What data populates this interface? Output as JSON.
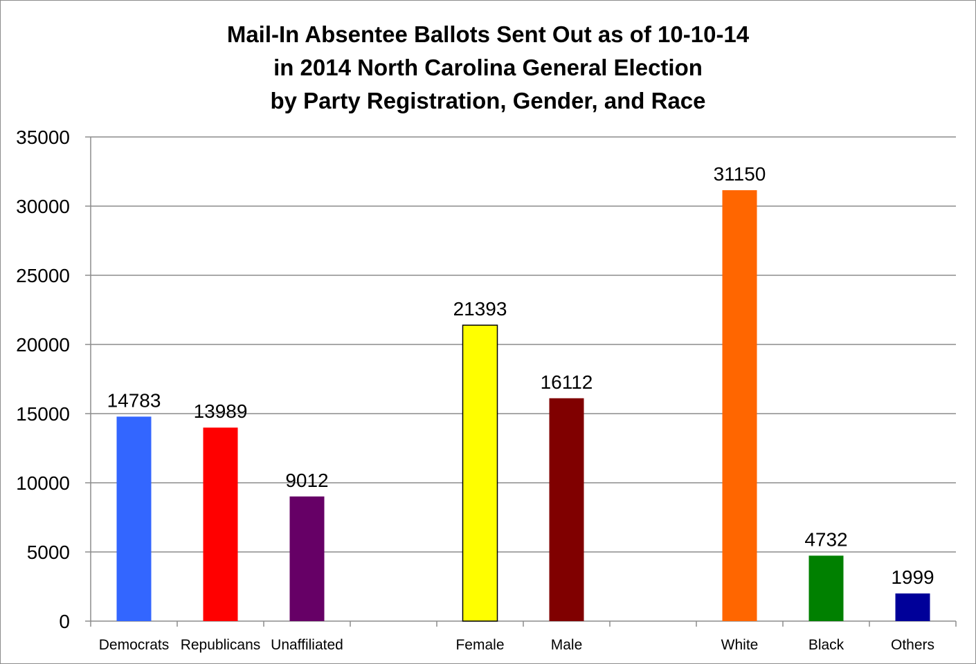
{
  "chart_data": {
    "type": "bar",
    "title": [
      "Mail-In Absentee Ballots Sent Out as of 10-10-14",
      "in 2014 North Carolina General Election",
      "by Party Registration, Gender, and Race"
    ],
    "xlabel": "",
    "ylabel": "",
    "ylim": [
      0,
      35000
    ],
    "yticks": [
      "0",
      "5000",
      "10000",
      "15000",
      "20000",
      "25000",
      "30000",
      "35000"
    ],
    "grid": true,
    "legend": "none",
    "categories": [
      "Democrats",
      "Republicans",
      "Unaffiliated",
      "",
      "Female",
      "Male",
      "",
      "White",
      "Black",
      "Others"
    ],
    "values": [
      14783,
      13989,
      9012,
      null,
      21393,
      16112,
      null,
      31150,
      4732,
      1999
    ],
    "data_labels": [
      "14783",
      "13989",
      "9012",
      "",
      "21393",
      "16112",
      "",
      "31150",
      "4732",
      "1999"
    ],
    "colors": [
      "#3366ff",
      "#ff0000",
      "#660066",
      "",
      "#ffff00",
      "#800000",
      "",
      "#ff6600",
      "#008000",
      "#000099"
    ],
    "gridline_color": "#8c8c8c",
    "axis_color": "#8c8c8c"
  }
}
